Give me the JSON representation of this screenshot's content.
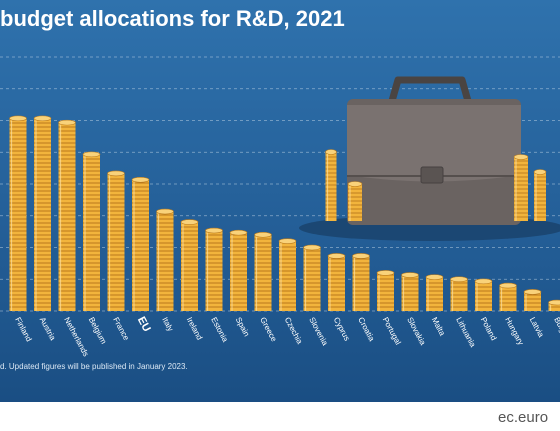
{
  "page": {
    "title": " budget allocations for R&D, 2021",
    "note": "d. Updated figures will be published in January 2023.",
    "source": "ec.euro"
  },
  "colors": {
    "background": "#245f98",
    "coin": "#f2b43c",
    "coin_edge": "#b9791c",
    "grid": "#dce7f2",
    "briefcase": "#6a6361"
  },
  "icons": {
    "illustration": "briefcase-with-coins-icon"
  },
  "chart_data": {
    "type": "bar",
    "title": "budget allocations for R&D, 2021",
    "categories": [
      "Finland",
      "Austria",
      "Netherlands",
      "Belgium",
      "France",
      "EU",
      "Italy",
      "Ireland",
      "Estonia",
      "Spain",
      "Greece",
      "Czechia",
      "Slovenia",
      "Cyprus",
      "Croatia",
      "Portugal",
      "Slovakia",
      "Malta",
      "Lithuania",
      "Poland",
      "Hungary",
      "Latvia",
      "Bulgaria"
    ],
    "highlight": "EU",
    "values": [
      0.91,
      0.91,
      0.89,
      0.74,
      0.65,
      0.62,
      0.47,
      0.42,
      0.38,
      0.37,
      0.36,
      0.33,
      0.3,
      0.26,
      0.26,
      0.18,
      0.17,
      0.16,
      0.15,
      0.14,
      0.12,
      0.09,
      0.04
    ],
    "ylim": [
      0,
      1.2
    ],
    "grid": true,
    "bar_style": "stacked coins",
    "axis_labels_visible": false
  }
}
